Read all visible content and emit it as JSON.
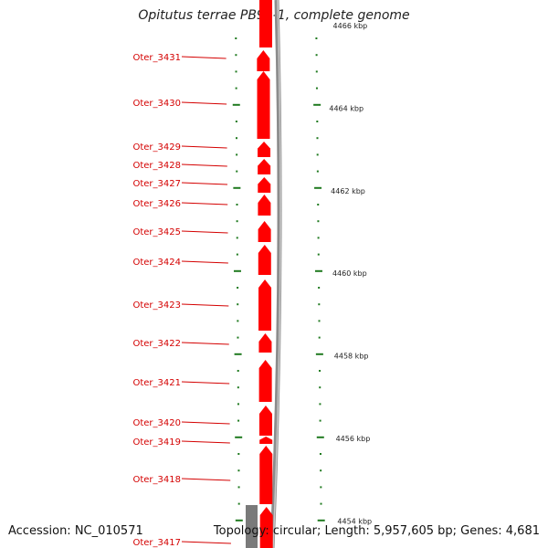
{
  "title": "Opitutus terrae PB90-1, complete genome",
  "footer": {
    "accession": "Accession: NC_010571",
    "topology": "Topology: circular; Length: 5,957,605 bp; Genes: 4,681"
  },
  "colors": {
    "gene": "#ff0000",
    "label": "#d40000",
    "backbone": "#8c8c8c",
    "tick": "#1f7a1f"
  },
  "kbp_labels": [
    {
      "text": "4466 kbp",
      "kbp": 4466
    },
    {
      "text": "4464 kbp",
      "kbp": 4464
    },
    {
      "text": "4462 kbp",
      "kbp": 4462
    },
    {
      "text": "4460 kbp",
      "kbp": 4460
    },
    {
      "text": "4458 kbp",
      "kbp": 4458
    },
    {
      "text": "4456 kbp",
      "kbp": 4456
    },
    {
      "text": "4454 kbp",
      "kbp": 4454
    }
  ],
  "genes": [
    {
      "name": "Oter_3431",
      "strand": "-"
    },
    {
      "name": "Oter_3430",
      "strand": "-"
    },
    {
      "name": "Oter_3429",
      "strand": "-"
    },
    {
      "name": "Oter_3428",
      "strand": "-"
    },
    {
      "name": "Oter_3427",
      "strand": "-"
    },
    {
      "name": "Oter_3426",
      "strand": "-"
    },
    {
      "name": "Oter_3425",
      "strand": "-"
    },
    {
      "name": "Oter_3424",
      "strand": "-"
    },
    {
      "name": "Oter_3423",
      "strand": "-"
    },
    {
      "name": "Oter_3422",
      "strand": "-"
    },
    {
      "name": "Oter_3421",
      "strand": "-"
    },
    {
      "name": "Oter_3420",
      "strand": "-"
    },
    {
      "name": "Oter_3419",
      "strand": "-"
    },
    {
      "name": "Oter_3418",
      "strand": "-"
    },
    {
      "name": "Oter_3417",
      "strand": "-"
    }
  ]
}
